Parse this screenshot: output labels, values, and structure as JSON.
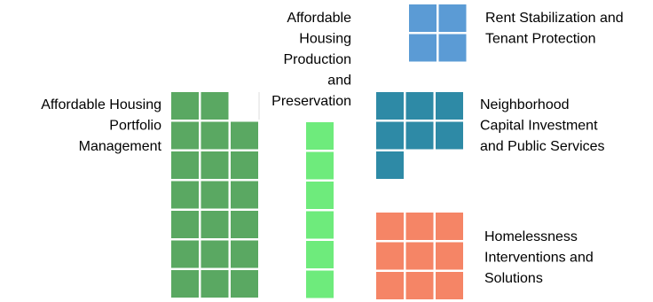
{
  "chart_data": {
    "type": "waffle",
    "title": "",
    "groups": [
      {
        "name": "Affordable Housing Portfolio Management",
        "label_lines": [
          "Affordable Housing",
          "Portfolio",
          "Management"
        ],
        "value": 20,
        "columns": 3,
        "color": "#5aa862"
      },
      {
        "name": "Affordable Housing Production and Preservation",
        "label_lines": [
          "Affordable",
          "Housing",
          "Production",
          "and",
          "Preservation"
        ],
        "value": 6,
        "columns": 1,
        "color": "#6eeb7c"
      },
      {
        "name": "Rent Stabilization and Tenant Protection",
        "label_lines": [
          "Rent Stabilization and",
          "Tenant Protection"
        ],
        "value": 4,
        "columns": 2,
        "color": "#5b9bd5"
      },
      {
        "name": "Neighborhood Capital Investment and Public Services",
        "label_lines": [
          "Neighborhood",
          "Capital Investment",
          "and Public Services"
        ],
        "value": 7,
        "columns": 3,
        "color": "#2e8aa6"
      },
      {
        "name": "Homelessness Interventions and Solutions",
        "label_lines": [
          "Homelessness",
          "Interventions and",
          "Solutions"
        ],
        "value": 9,
        "columns": 3,
        "color": "#f58566"
      }
    ]
  }
}
